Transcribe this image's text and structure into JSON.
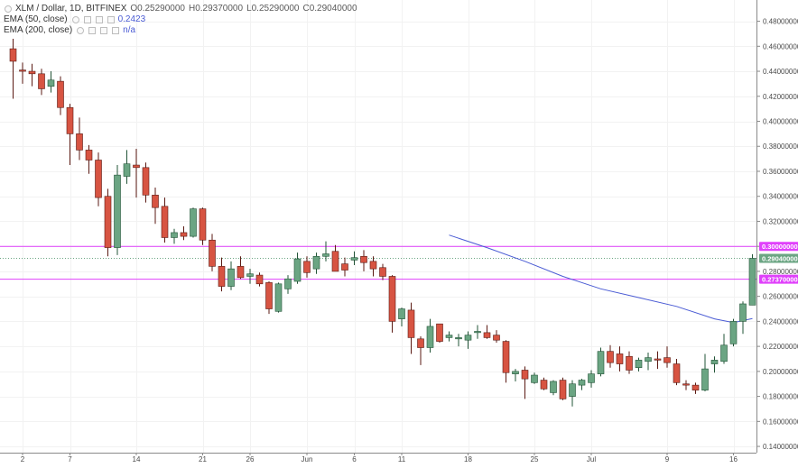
{
  "symbol": {
    "title": "XLM / Dollar, 1D, BITFINEX",
    "ohlc": [
      "O0.25290000",
      "H0.29370000",
      "L0.25290000",
      "C0.29040000"
    ]
  },
  "indicators": [
    {
      "label": "EMA (50, close)",
      "value": "0.2423"
    },
    {
      "label": "EMA (200, close)",
      "value": "n/a"
    }
  ],
  "colors": {
    "up": "#6ba583",
    "down": "#d75442",
    "up_border": "#225437",
    "down_border": "#5b1a13",
    "ema": "#4a5bd4",
    "hline": "#e040fb",
    "last_price": "#6ba583",
    "grid": "#f2f2f2"
  },
  "price_labels": [
    {
      "text": "0.30000000",
      "price": 0.3,
      "color": "#e040fb"
    },
    {
      "text": "0.29040000",
      "price": 0.2904,
      "color": "#6ba583"
    },
    {
      "text": "0.27370000",
      "price": 0.2737,
      "color": "#e040fb"
    }
  ],
  "chart_data": {
    "type": "candlestick",
    "title": "XLM / Dollar, 1D, BITFINEX",
    "ylim": [
      0.135,
      0.497
    ],
    "y_ticks": [
      "0.14000000",
      "0.16000000",
      "0.18000000",
      "0.20000000",
      "0.22000000",
      "0.24000000",
      "0.26000000",
      "0.28000000",
      "0.30000000",
      "0.32000000",
      "0.34000000",
      "0.36000000",
      "0.38000000",
      "0.40000000",
      "0.42000000",
      "0.44000000",
      "0.46000000",
      "0.48000000"
    ],
    "x_ticks": [
      {
        "label": "2",
        "day": 1
      },
      {
        "label": "7",
        "day": 6
      },
      {
        "label": "14",
        "day": 13
      },
      {
        "label": "21",
        "day": 20
      },
      {
        "label": "26",
        "day": 25
      },
      {
        "label": "Jun",
        "day": 31
      },
      {
        "label": "6",
        "day": 36
      },
      {
        "label": "11",
        "day": 41
      },
      {
        "label": "18",
        "day": 48
      },
      {
        "label": "25",
        "day": 55
      },
      {
        "label": "Jul",
        "day": 61
      },
      {
        "label": "9",
        "day": 69
      },
      {
        "label": "16",
        "day": 76
      }
    ],
    "candles": [
      {
        "day": 0,
        "o": 0.458,
        "h": 0.466,
        "l": 0.418,
        "c": 0.448
      },
      {
        "day": 1,
        "o": 0.441,
        "h": 0.447,
        "l": 0.43,
        "c": 0.44
      },
      {
        "day": 2,
        "o": 0.44,
        "h": 0.446,
        "l": 0.428,
        "c": 0.438
      },
      {
        "day": 3,
        "o": 0.438,
        "h": 0.442,
        "l": 0.421,
        "c": 0.426
      },
      {
        "day": 4,
        "o": 0.428,
        "h": 0.44,
        "l": 0.423,
        "c": 0.433
      },
      {
        "day": 5,
        "o": 0.432,
        "h": 0.436,
        "l": 0.405,
        "c": 0.411
      },
      {
        "day": 6,
        "o": 0.411,
        "h": 0.414,
        "l": 0.365,
        "c": 0.39
      },
      {
        "day": 7,
        "o": 0.39,
        "h": 0.403,
        "l": 0.369,
        "c": 0.377
      },
      {
        "day": 8,
        "o": 0.377,
        "h": 0.381,
        "l": 0.358,
        "c": 0.369
      },
      {
        "day": 9,
        "o": 0.369,
        "h": 0.375,
        "l": 0.332,
        "c": 0.339
      },
      {
        "day": 10,
        "o": 0.34,
        "h": 0.346,
        "l": 0.292,
        "c": 0.299
      },
      {
        "day": 11,
        "o": 0.299,
        "h": 0.365,
        "l": 0.293,
        "c": 0.357
      },
      {
        "day": 12,
        "o": 0.356,
        "h": 0.377,
        "l": 0.35,
        "c": 0.366
      },
      {
        "day": 13,
        "o": 0.365,
        "h": 0.378,
        "l": 0.339,
        "c": 0.363
      },
      {
        "day": 14,
        "o": 0.363,
        "h": 0.367,
        "l": 0.335,
        "c": 0.341
      },
      {
        "day": 15,
        "o": 0.341,
        "h": 0.347,
        "l": 0.318,
        "c": 0.331
      },
      {
        "day": 16,
        "o": 0.332,
        "h": 0.339,
        "l": 0.303,
        "c": 0.307
      },
      {
        "day": 17,
        "o": 0.307,
        "h": 0.314,
        "l": 0.302,
        "c": 0.311
      },
      {
        "day": 18,
        "o": 0.311,
        "h": 0.316,
        "l": 0.305,
        "c": 0.308
      },
      {
        "day": 19,
        "o": 0.308,
        "h": 0.331,
        "l": 0.307,
        "c": 0.33
      },
      {
        "day": 20,
        "o": 0.33,
        "h": 0.331,
        "l": 0.301,
        "c": 0.305
      },
      {
        "day": 21,
        "o": 0.305,
        "h": 0.31,
        "l": 0.28,
        "c": 0.284
      },
      {
        "day": 22,
        "o": 0.284,
        "h": 0.291,
        "l": 0.264,
        "c": 0.268
      },
      {
        "day": 23,
        "o": 0.268,
        "h": 0.288,
        "l": 0.265,
        "c": 0.282
      },
      {
        "day": 24,
        "o": 0.284,
        "h": 0.292,
        "l": 0.274,
        "c": 0.275
      },
      {
        "day": 25,
        "o": 0.276,
        "h": 0.282,
        "l": 0.27,
        "c": 0.278
      },
      {
        "day": 26,
        "o": 0.277,
        "h": 0.279,
        "l": 0.268,
        "c": 0.27
      },
      {
        "day": 27,
        "o": 0.271,
        "h": 0.272,
        "l": 0.246,
        "c": 0.25
      },
      {
        "day": 28,
        "o": 0.248,
        "h": 0.271,
        "l": 0.247,
        "c": 0.27
      },
      {
        "day": 29,
        "o": 0.266,
        "h": 0.277,
        "l": 0.262,
        "c": 0.274
      },
      {
        "day": 30,
        "o": 0.272,
        "h": 0.295,
        "l": 0.27,
        "c": 0.29
      },
      {
        "day": 31,
        "o": 0.288,
        "h": 0.292,
        "l": 0.275,
        "c": 0.279
      },
      {
        "day": 32,
        "o": 0.282,
        "h": 0.295,
        "l": 0.278,
        "c": 0.292
      },
      {
        "day": 33,
        "o": 0.292,
        "h": 0.304,
        "l": 0.288,
        "c": 0.294
      },
      {
        "day": 34,
        "o": 0.296,
        "h": 0.301,
        "l": 0.282,
        "c": 0.28
      },
      {
        "day": 35,
        "o": 0.286,
        "h": 0.291,
        "l": 0.276,
        "c": 0.281
      },
      {
        "day": 36,
        "o": 0.289,
        "h": 0.296,
        "l": 0.285,
        "c": 0.291
      },
      {
        "day": 37,
        "o": 0.292,
        "h": 0.297,
        "l": 0.28,
        "c": 0.287
      },
      {
        "day": 38,
        "o": 0.288,
        "h": 0.292,
        "l": 0.276,
        "c": 0.282
      },
      {
        "day": 39,
        "o": 0.283,
        "h": 0.286,
        "l": 0.273,
        "c": 0.276
      },
      {
        "day": 40,
        "o": 0.276,
        "h": 0.277,
        "l": 0.231,
        "c": 0.24
      },
      {
        "day": 41,
        "o": 0.242,
        "h": 0.251,
        "l": 0.236,
        "c": 0.25
      },
      {
        "day": 42,
        "o": 0.249,
        "h": 0.255,
        "l": 0.214,
        "c": 0.227
      },
      {
        "day": 43,
        "o": 0.226,
        "h": 0.228,
        "l": 0.205,
        "c": 0.219
      },
      {
        "day": 44,
        "o": 0.219,
        "h": 0.242,
        "l": 0.215,
        "c": 0.236
      },
      {
        "day": 45,
        "o": 0.238,
        "h": 0.238,
        "l": 0.223,
        "c": 0.224
      },
      {
        "day": 46,
        "o": 0.227,
        "h": 0.232,
        "l": 0.224,
        "c": 0.229
      },
      {
        "day": 47,
        "o": 0.226,
        "h": 0.23,
        "l": 0.22,
        "c": 0.227
      },
      {
        "day": 48,
        "o": 0.225,
        "h": 0.232,
        "l": 0.218,
        "c": 0.229
      },
      {
        "day": 49,
        "o": 0.231,
        "h": 0.237,
        "l": 0.226,
        "c": 0.232
      },
      {
        "day": 50,
        "o": 0.231,
        "h": 0.237,
        "l": 0.226,
        "c": 0.227
      },
      {
        "day": 51,
        "o": 0.229,
        "h": 0.233,
        "l": 0.223,
        "c": 0.225
      },
      {
        "day": 52,
        "o": 0.224,
        "h": 0.225,
        "l": 0.191,
        "c": 0.199
      },
      {
        "day": 53,
        "o": 0.198,
        "h": 0.202,
        "l": 0.192,
        "c": 0.2
      },
      {
        "day": 54,
        "o": 0.201,
        "h": 0.204,
        "l": 0.178,
        "c": 0.194
      },
      {
        "day": 55,
        "o": 0.191,
        "h": 0.199,
        "l": 0.19,
        "c": 0.197
      },
      {
        "day": 56,
        "o": 0.193,
        "h": 0.195,
        "l": 0.185,
        "c": 0.186
      },
      {
        "day": 57,
        "o": 0.183,
        "h": 0.193,
        "l": 0.181,
        "c": 0.192
      },
      {
        "day": 58,
        "o": 0.193,
        "h": 0.195,
        "l": 0.177,
        "c": 0.178
      },
      {
        "day": 59,
        "o": 0.18,
        "h": 0.193,
        "l": 0.172,
        "c": 0.19
      },
      {
        "day": 60,
        "o": 0.189,
        "h": 0.194,
        "l": 0.185,
        "c": 0.193
      },
      {
        "day": 61,
        "o": 0.191,
        "h": 0.201,
        "l": 0.187,
        "c": 0.198
      },
      {
        "day": 62,
        "o": 0.198,
        "h": 0.219,
        "l": 0.196,
        "c": 0.216
      },
      {
        "day": 63,
        "o": 0.216,
        "h": 0.221,
        "l": 0.203,
        "c": 0.207
      },
      {
        "day": 64,
        "o": 0.214,
        "h": 0.22,
        "l": 0.2,
        "c": 0.206
      },
      {
        "day": 65,
        "o": 0.212,
        "h": 0.216,
        "l": 0.198,
        "c": 0.201
      },
      {
        "day": 66,
        "o": 0.203,
        "h": 0.211,
        "l": 0.2,
        "c": 0.209
      },
      {
        "day": 67,
        "o": 0.208,
        "h": 0.215,
        "l": 0.201,
        "c": 0.211
      },
      {
        "day": 68,
        "o": 0.21,
        "h": 0.216,
        "l": 0.202,
        "c": 0.209
      },
      {
        "day": 69,
        "o": 0.211,
        "h": 0.22,
        "l": 0.203,
        "c": 0.207
      },
      {
        "day": 70,
        "o": 0.206,
        "h": 0.21,
        "l": 0.189,
        "c": 0.191
      },
      {
        "day": 71,
        "o": 0.19,
        "h": 0.193,
        "l": 0.185,
        "c": 0.189
      },
      {
        "day": 72,
        "o": 0.189,
        "h": 0.191,
        "l": 0.182,
        "c": 0.185
      },
      {
        "day": 73,
        "o": 0.185,
        "h": 0.214,
        "l": 0.184,
        "c": 0.202
      },
      {
        "day": 74,
        "o": 0.206,
        "h": 0.212,
        "l": 0.199,
        "c": 0.209
      },
      {
        "day": 75,
        "o": 0.208,
        "h": 0.23,
        "l": 0.206,
        "c": 0.221
      },
      {
        "day": 76,
        "o": 0.222,
        "h": 0.242,
        "l": 0.22,
        "c": 0.24
      },
      {
        "day": 77,
        "o": 0.24,
        "h": 0.256,
        "l": 0.23,
        "c": 0.254
      },
      {
        "day": 78,
        "o": 0.253,
        "h": 0.2937,
        "l": 0.2529,
        "c": 0.2904
      }
    ],
    "ema50": [
      {
        "day": 46,
        "v": 0.309
      },
      {
        "day": 50,
        "v": 0.299
      },
      {
        "day": 54,
        "v": 0.288
      },
      {
        "day": 58,
        "v": 0.276
      },
      {
        "day": 62,
        "v": 0.266
      },
      {
        "day": 66,
        "v": 0.259
      },
      {
        "day": 70,
        "v": 0.252
      },
      {
        "day": 74,
        "v": 0.242
      },
      {
        "day": 76,
        "v": 0.239
      },
      {
        "day": 78,
        "v": 0.2423
      }
    ],
    "hlines": [
      0.3,
      0.2904,
      0.2737
    ]
  }
}
